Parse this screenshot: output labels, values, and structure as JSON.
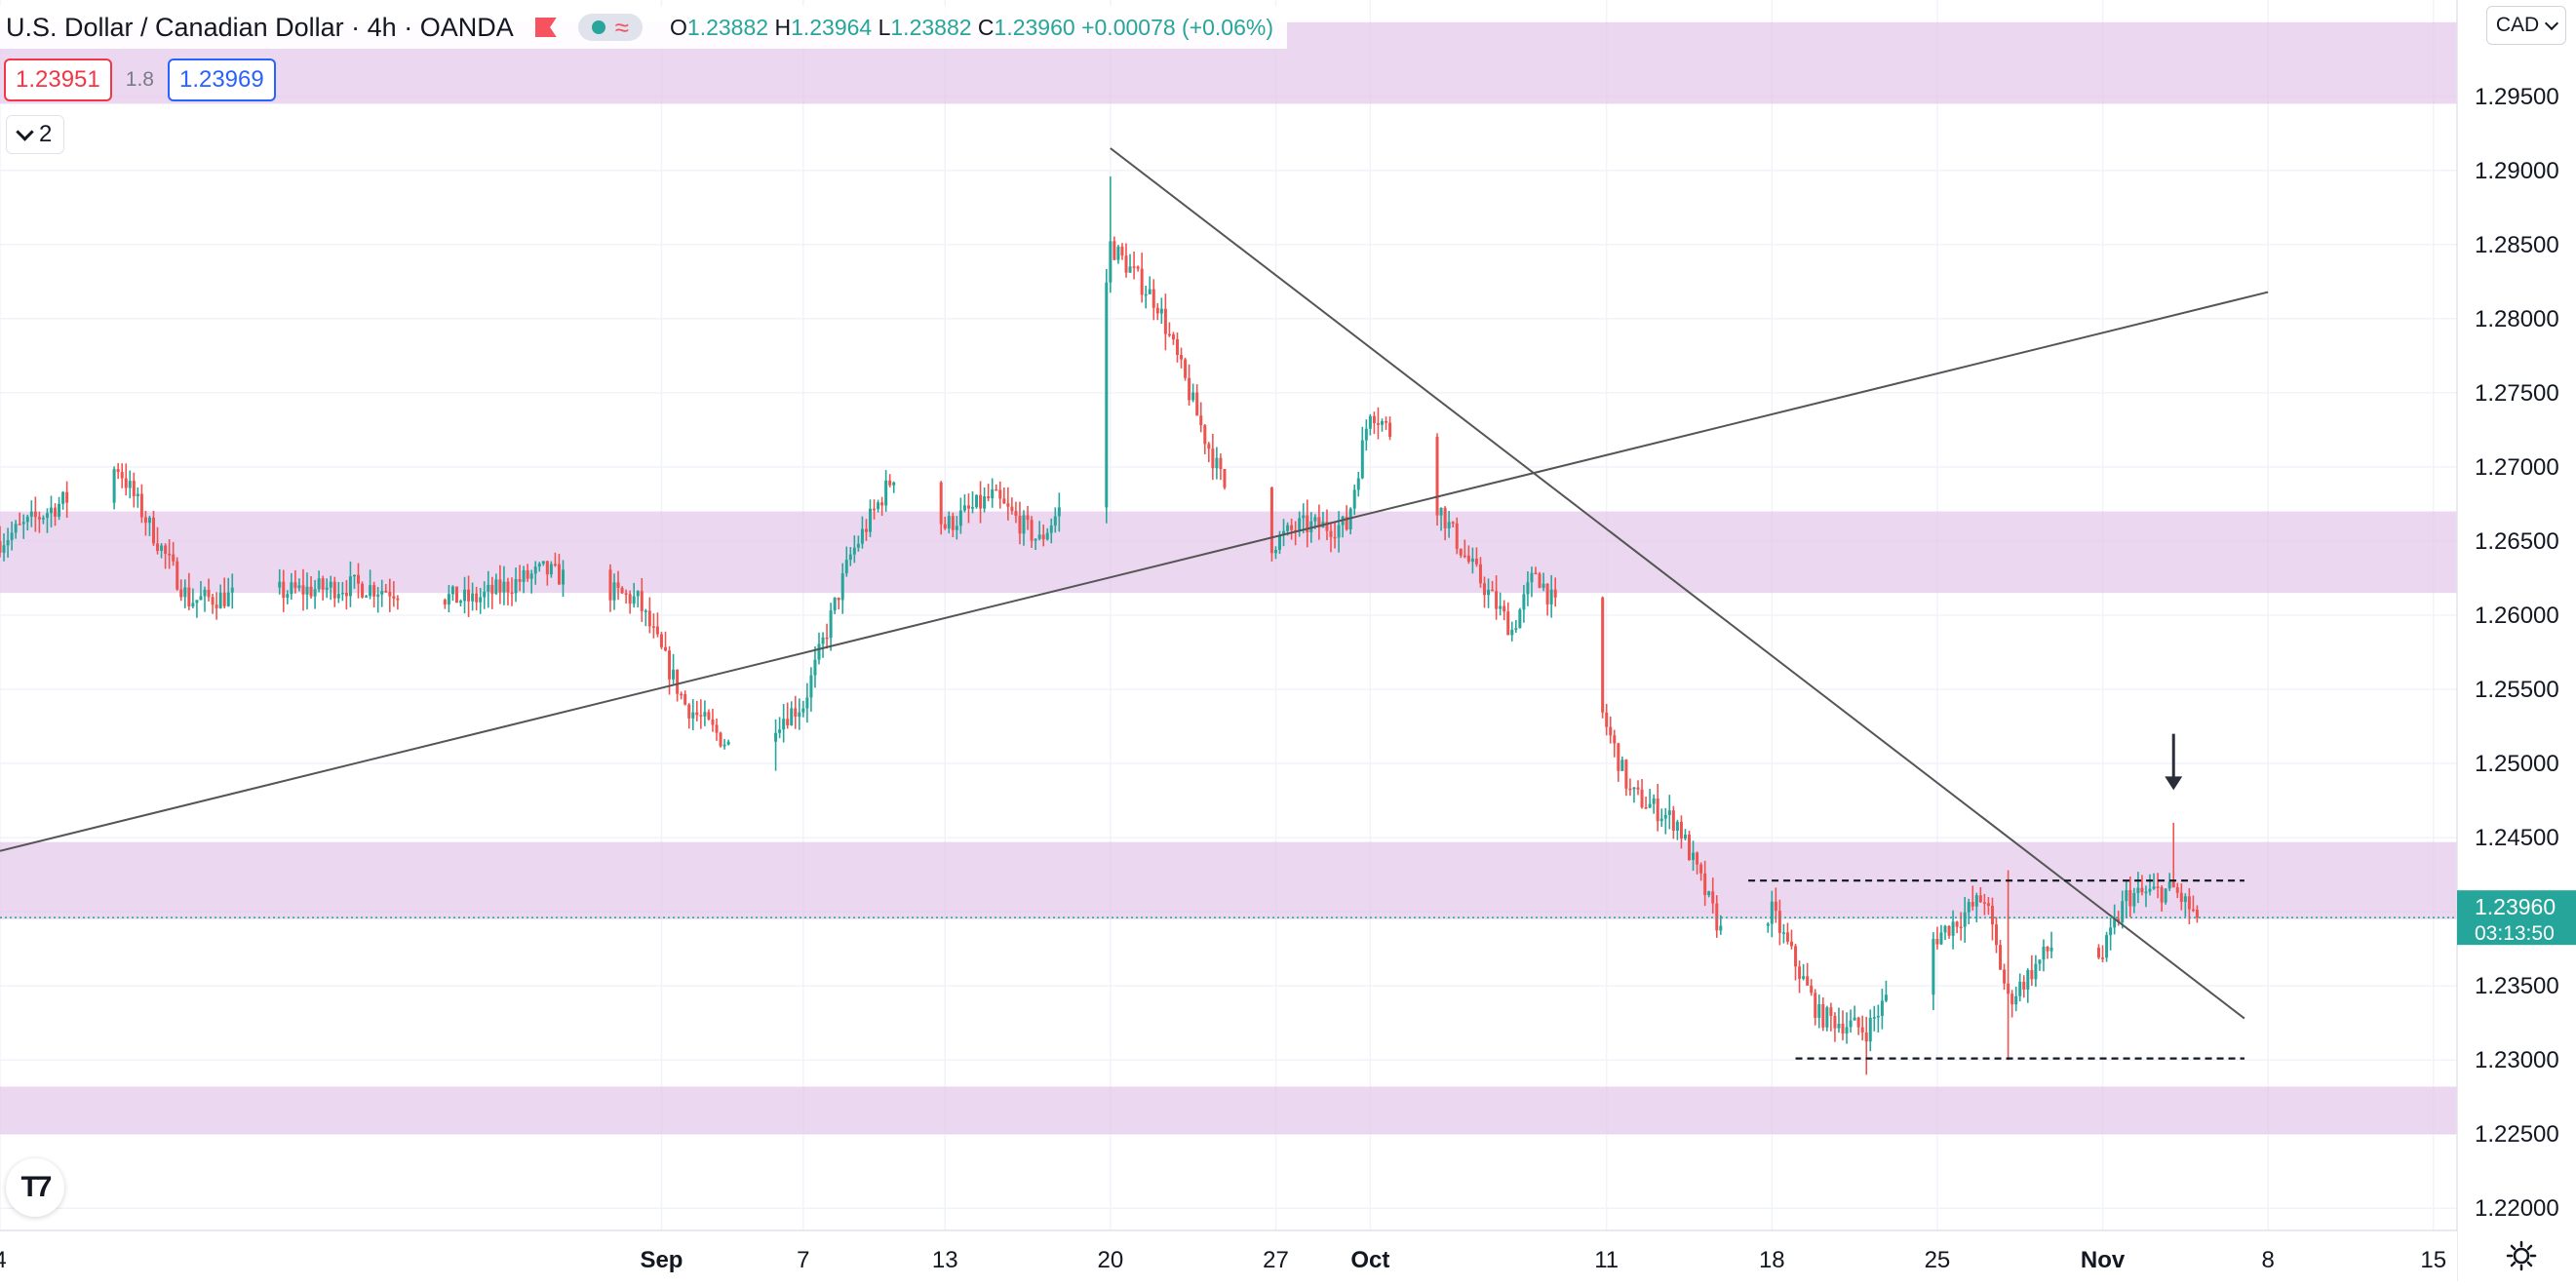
{
  "symbol": {
    "title": "U.S. Dollar / Canadian Dollar",
    "interval": "4h",
    "exchange": "OANDA",
    "ohlc": {
      "o": "1.23882",
      "h": "1.23964",
      "l": "1.23882",
      "c": "1.23960",
      "change": "+0.00078 (+0.06%)"
    }
  },
  "trade": {
    "sell": "1.23951",
    "spread": "1.8",
    "buy": "1.23969"
  },
  "indicators": {
    "collapsed_count": "2"
  },
  "currency_label": "CAD",
  "colors": {
    "up": "#26a69a",
    "down": "#ef5350",
    "zone": "#e1bee7",
    "line": "#555555"
  },
  "chart_data": {
    "type": "candlestick",
    "x_ticks": [
      "4",
      "Sep",
      "7",
      "13",
      "20",
      "27",
      "Oct",
      "11",
      "18",
      "25",
      "Nov",
      "8",
      "15"
    ],
    "y_ticks": [
      "1.29500",
      "1.29000",
      "1.28500",
      "1.28000",
      "1.27500",
      "1.27000",
      "1.26500",
      "1.26000",
      "1.25500",
      "1.25000",
      "1.24500",
      "1.24000",
      "1.23500",
      "1.23000",
      "1.22500",
      "1.22000"
    ],
    "y_range": [
      1.2185,
      1.3015
    ],
    "x_range": [
      "2021-08-04",
      "2021-11-16"
    ],
    "last_price": "1.23960",
    "countdown": "03:13:50",
    "zones": [
      {
        "from": 1.2945,
        "to": 1.3
      },
      {
        "from": 1.2615,
        "to": 1.267
      },
      {
        "from": 1.2395,
        "to": 1.2447
      },
      {
        "from": 1.225,
        "to": 1.2282
      }
    ],
    "trendlines": [
      {
        "from": [
          "2021-08-04",
          1.2441
        ],
        "to": [
          "2021-11-08",
          1.2818
        ]
      },
      {
        "from": [
          "2021-09-20",
          1.2915
        ],
        "to": [
          "2021-11-07",
          1.2328
        ]
      }
    ],
    "levels": [
      {
        "price": 1.2421,
        "from": "2021-10-17",
        "to": "2021-11-07"
      },
      {
        "price": 1.2301,
        "from": "2021-10-19",
        "to": "2021-11-07"
      }
    ],
    "annotation_arrow": {
      "date": "2021-11-04",
      "price_from": 1.252,
      "price_to": 1.2482
    },
    "anchors": [
      {
        "date": "2021-08-04",
        "price": 1.265
      },
      {
        "date": "2021-08-09",
        "price": 1.27
      },
      {
        "date": "2021-08-12",
        "price": 1.261
      },
      {
        "date": "2021-08-19",
        "price": 1.262
      },
      {
        "date": "2021-08-24",
        "price": 1.261
      },
      {
        "date": "2021-08-27",
        "price": 1.263
      },
      {
        "date": "2021-08-31",
        "price": 1.261
      },
      {
        "date": "2021-09-02",
        "price": 1.254
      },
      {
        "date": "2021-09-04",
        "price": 1.251
      },
      {
        "date": "2021-09-07",
        "price": 1.254
      },
      {
        "date": "2021-09-09",
        "price": 1.264
      },
      {
        "date": "2021-09-11",
        "price": 1.27
      },
      {
        "date": "2021-09-13",
        "price": 1.266
      },
      {
        "date": "2021-09-15",
        "price": 1.268
      },
      {
        "date": "2021-09-17",
        "price": 1.265
      },
      {
        "date": "2021-09-19",
        "price": 1.27
      },
      {
        "date": "2021-09-20",
        "price": 1.285
      },
      {
        "date": "2021-09-22",
        "price": 1.281
      },
      {
        "date": "2021-09-24",
        "price": 1.272
      },
      {
        "date": "2021-09-26",
        "price": 1.264
      },
      {
        "date": "2021-09-28",
        "price": 1.266
      },
      {
        "date": "2021-09-30",
        "price": 1.266
      },
      {
        "date": "2021-10-01",
        "price": 1.274
      },
      {
        "date": "2021-10-03",
        "price": 1.27
      },
      {
        "date": "2021-10-05",
        "price": 1.264
      },
      {
        "date": "2021-10-07",
        "price": 1.259
      },
      {
        "date": "2021-10-08",
        "price": 1.263
      },
      {
        "date": "2021-10-10",
        "price": 1.257
      },
      {
        "date": "2021-10-12",
        "price": 1.248
      },
      {
        "date": "2021-10-14",
        "price": 1.246
      },
      {
        "date": "2021-10-16",
        "price": 1.238
      },
      {
        "date": "2021-10-18",
        "price": 1.24
      },
      {
        "date": "2021-10-20",
        "price": 1.233
      },
      {
        "date": "2021-10-22",
        "price": 1.232
      },
      {
        "date": "2021-10-24",
        "price": 1.237
      },
      {
        "date": "2021-10-27",
        "price": 1.241
      },
      {
        "date": "2021-10-28",
        "price": 1.234
      },
      {
        "date": "2021-10-30",
        "price": 1.238
      },
      {
        "date": "2021-11-01",
        "price": 1.237
      },
      {
        "date": "2021-11-02",
        "price": 1.241
      },
      {
        "date": "2021-11-04",
        "price": 1.2415
      },
      {
        "date": "2021-11-05",
        "price": 1.2396
      }
    ],
    "pinned_extremes": [
      {
        "date": "2021-09-20",
        "price": 1.2896,
        "kind": "high"
      },
      {
        "date": "2021-09-05",
        "price": 1.2495,
        "kind": "low"
      },
      {
        "date": "2021-10-22",
        "price": 1.229,
        "kind": "low"
      },
      {
        "date": "2021-10-28",
        "price": 1.23,
        "kind": "low"
      },
      {
        "date": "2021-10-28",
        "price": 1.2428,
        "kind": "high"
      },
      {
        "date": "2021-11-04",
        "price": 1.246,
        "kind": "high"
      }
    ]
  }
}
